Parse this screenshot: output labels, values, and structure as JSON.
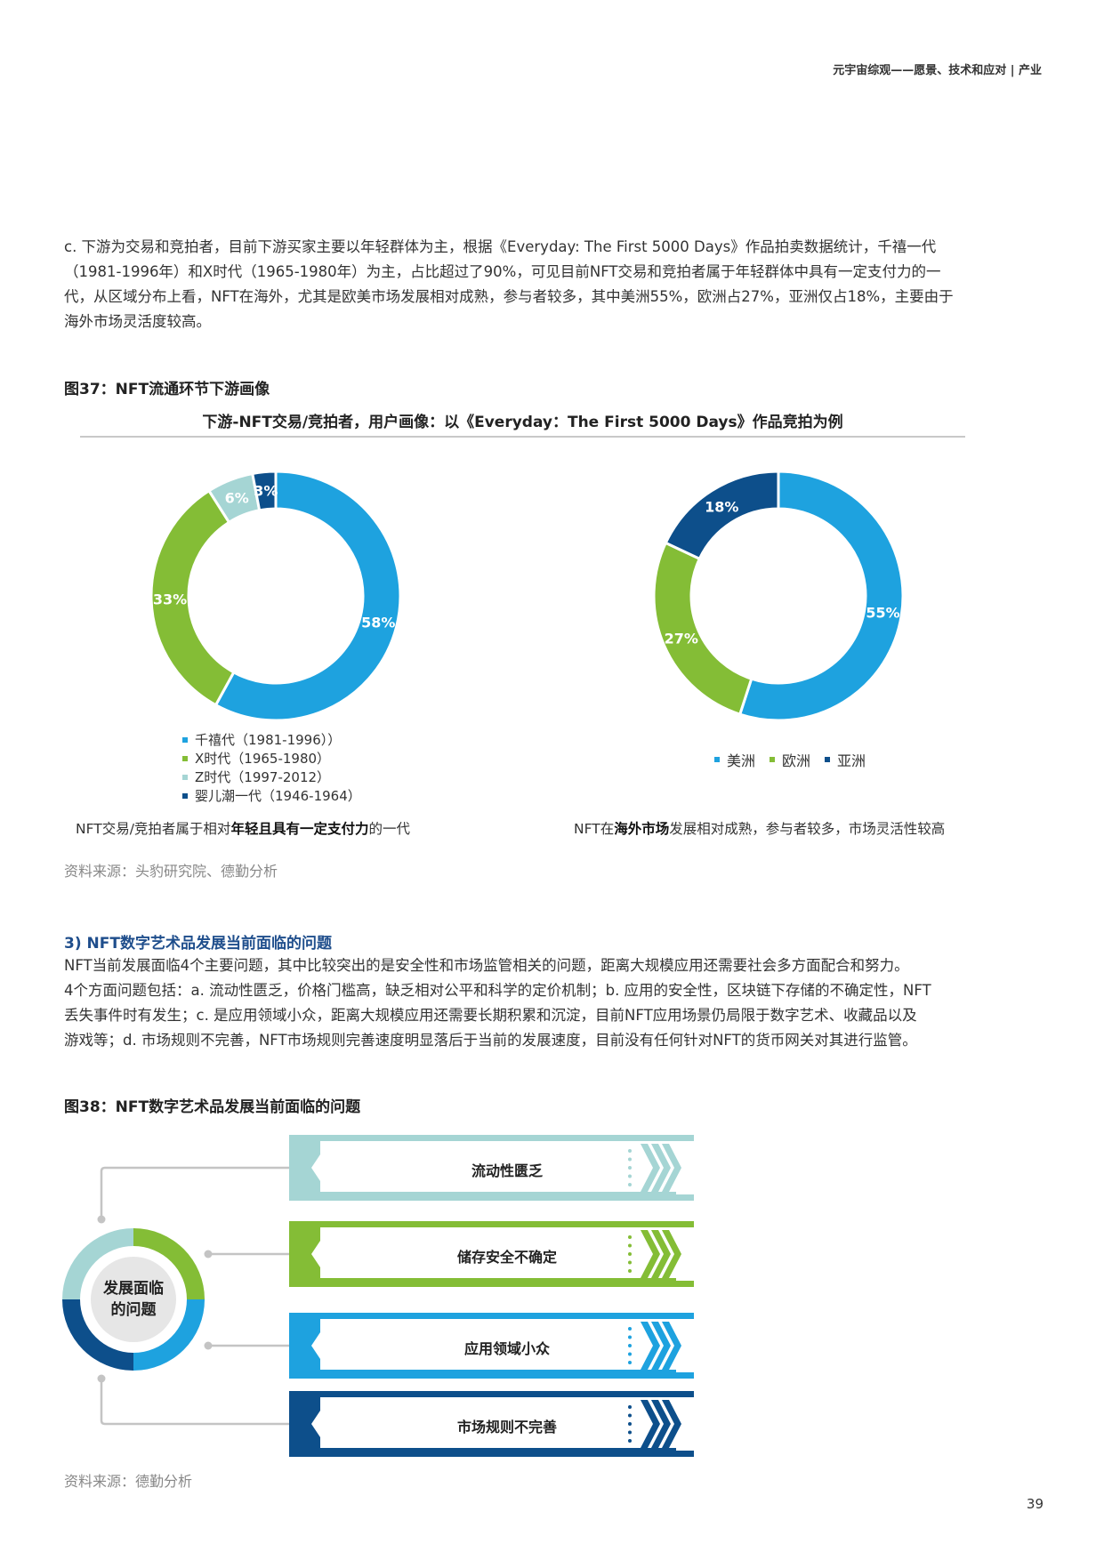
{
  "header": {
    "title": "元宇宙综观——愿景、技术和应对 | 产业"
  },
  "intro_paragraph": {
    "lines": [
      "c. 下游为交易和竞拍者，目前下游买家主要以年轻群体为主，根据《Everyday: The First 5000 Days》作品拍卖数据统计，千禧一代",
      "（1981-1996年）和X时代（1965-1980年）为主，占比超过了90%，可见目前NFT交易和竞拍者属于年轻群体中具有一定支付力的一",
      "代，从区域分布上看，NFT在海外，尤其是欧美市场发展相对成熟，参与者较多，其中美洲55%，欧洲占27%，亚洲仅占18%，主要由于",
      "海外市场灵活度较高。"
    ]
  },
  "figure37": {
    "title": "图37：NFT流通环节下游画像",
    "heading": "下游-NFT交易/竞拍者，用户画像：以《Everyday：The First 5000 Days》作品竞拍为例",
    "caption_left": {
      "pre": "NFT交易/竞拍者属于相对",
      "bold": "年轻且具有一定支付力",
      "post": "的一代"
    },
    "caption_right": {
      "pre": "NFT在",
      "bold": "海外市场",
      "post": "发展相对成熟，参与者较多，市场灵活性较高"
    },
    "source": "资料来源：头豹研究院、德勤分析"
  },
  "chart_data": [
    {
      "type": "pie",
      "donut": true,
      "categories": [
        "千禧代（1981-1996））",
        "X时代（1965-1980）",
        "Z时代（1997-2012）",
        "婴儿潮一代（1946-1964）"
      ],
      "values": [
        58,
        33,
        6,
        3
      ],
      "labels": [
        "58%",
        "33%",
        "6%",
        "3%"
      ],
      "colors": [
        "#1ea2df",
        "#84bd36",
        "#a5d5d4",
        "#0d4f8b"
      ],
      "legend": "bottom"
    },
    {
      "type": "pie",
      "donut": true,
      "categories": [
        "美洲",
        "欧洲",
        "亚洲"
      ],
      "values": [
        55,
        27,
        18
      ],
      "labels": [
        "55%",
        "27%",
        "18%"
      ],
      "colors": [
        "#1ea2df",
        "#84bd36",
        "#0d4f8b"
      ],
      "legend": "bottom"
    }
  ],
  "section3": {
    "heading": "3) NFT数字艺术品发展当前面临的问题",
    "lines": [
      "NFT当前发展面临4个主要问题，其中比较突出的是安全性和市场监管相关的问题，距离大规模应用还需要社会多方面配合和努力。",
      "4个方面问题包括：a. 流动性匮乏，价格门槛高，缺乏相对公平和科学的定价机制；b. 应用的安全性，区块链下存储的不确定性，NFT",
      "丢失事件时有发生；c. 是应用领域小众，距离大规模应用还需要长期积累和沉淀，目前NFT应用场景仍局限于数字艺术、收藏品以及",
      "游戏等；d. 市场规则不完善，NFT市场规则完善速度明显落后于当前的发展速度，目前没有任何针对NFT的货币网关对其进行监管。"
    ]
  },
  "figure38": {
    "title": "图38：NFT数字艺术品发展当前面临的问题",
    "center_label": [
      "发展面临",
      "的问题"
    ],
    "issues": [
      {
        "label": "流动性匮乏",
        "color": "#a5d5d4"
      },
      {
        "label": "储存安全不确定",
        "color": "#84bd36"
      },
      {
        "label": "应用领域小众",
        "color": "#1ea2df"
      },
      {
        "label": "市场规则不完善",
        "color": "#0d4f8b"
      }
    ],
    "source": "资料来源：德勤分析"
  },
  "page_number": "39"
}
